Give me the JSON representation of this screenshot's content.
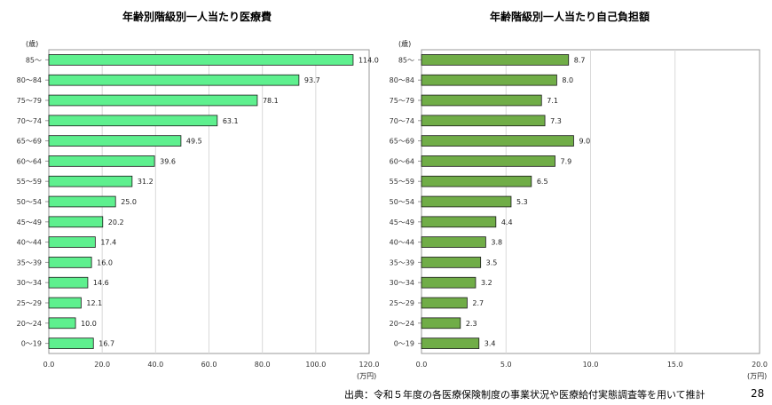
{
  "chart_data": [
    {
      "type": "bar",
      "orientation": "horizontal",
      "title": "年齢別階級別一人当たり医療費",
      "ylabel": "(歳)",
      "xlabel": "(万円)",
      "categories": [
        "85～",
        "80～84",
        "75～79",
        "70～74",
        "65～69",
        "60～64",
        "55～59",
        "50～54",
        "45～49",
        "40～44",
        "35～39",
        "30～34",
        "25～29",
        "20～24",
        "0～19"
      ],
      "values": [
        114.0,
        93.7,
        78.1,
        63.1,
        49.5,
        39.6,
        31.2,
        25.0,
        20.2,
        17.4,
        16.0,
        14.6,
        12.1,
        10.0,
        16.7
      ],
      "value_labels": [
        "114.0",
        "93.7",
        "78.1",
        "63.1",
        "49.5",
        "39.6",
        "31.2",
        "25.0",
        "20.2",
        "17.4",
        "16.0",
        "14.6",
        "12.1",
        "10.0",
        "16.7"
      ],
      "xlim": [
        0,
        120
      ],
      "xticks": [
        0,
        20,
        40,
        60,
        80,
        100,
        120
      ],
      "xtick_labels": [
        "0.0",
        "20.0",
        "40.0",
        "60.0",
        "80.0",
        "100.0",
        "120.0"
      ],
      "grid": true,
      "bar_color": "#5ef08e"
    },
    {
      "type": "bar",
      "orientation": "horizontal",
      "title": "年齢階級別一人当たり自己負担額",
      "ylabel": "(歳)",
      "xlabel": "(万円)",
      "categories": [
        "85～",
        "80～84",
        "75～79",
        "70～74",
        "65～69",
        "60～64",
        "55～59",
        "50～54",
        "45～49",
        "40～44",
        "35～39",
        "30～34",
        "25～29",
        "20～24",
        "0～19"
      ],
      "values": [
        8.7,
        8.0,
        7.1,
        7.3,
        9.0,
        7.9,
        6.5,
        5.3,
        4.4,
        3.8,
        3.5,
        3.2,
        2.7,
        2.3,
        3.4
      ],
      "value_labels": [
        "8.7",
        "8.0",
        "7.1",
        "7.3",
        "9.0",
        "7.9",
        "6.5",
        "5.3",
        "4.4",
        "3.8",
        "3.5",
        "3.2",
        "2.7",
        "2.3",
        "3.4"
      ],
      "xlim": [
        0,
        20
      ],
      "xticks": [
        0,
        5,
        10,
        15,
        20
      ],
      "xtick_labels": [
        "0.0",
        "5.0",
        "10.0",
        "15.0",
        "20.0"
      ],
      "grid": true,
      "bar_color": "#70ad47"
    }
  ],
  "footer": {
    "source": "出典：令和５年度の各医療保険制度の事業状況や医療給付実態調査等を用いて推計",
    "page_number": "28"
  }
}
